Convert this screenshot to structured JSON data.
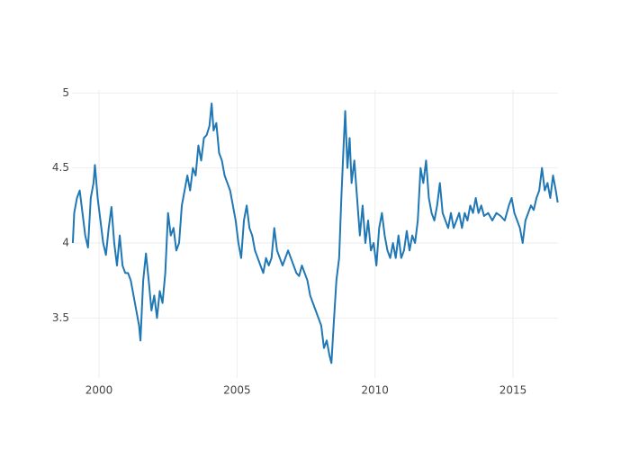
{
  "chart_data": {
    "type": "line",
    "color": "#1f77b4",
    "grid": true,
    "xlim": [
      1999.02,
      2016.63
    ],
    "xticks": [
      2000,
      2005,
      2010,
      2015
    ],
    "ylim": [
      3.1,
      5.02
    ],
    "yticks": [
      3.5,
      4,
      4.5,
      5
    ],
    "x": [
      1999.05,
      1999.1,
      1999.2,
      1999.3,
      1999.4,
      1999.5,
      1999.6,
      1999.7,
      1999.8,
      1999.85,
      1999.95,
      2000.05,
      2000.15,
      2000.25,
      2000.35,
      2000.45,
      2000.55,
      2000.65,
      2000.75,
      2000.85,
      2000.95,
      2001.05,
      2001.15,
      2001.25,
      2001.35,
      2001.45,
      2001.5,
      2001.6,
      2001.7,
      2001.8,
      2001.9,
      2002.0,
      2002.1,
      2002.2,
      2002.3,
      2002.4,
      2002.5,
      2002.6,
      2002.7,
      2002.8,
      2002.9,
      2003.0,
      2003.1,
      2003.2,
      2003.3,
      2003.4,
      2003.5,
      2003.6,
      2003.7,
      2003.8,
      2003.9,
      2004.0,
      2004.08,
      2004.15,
      2004.25,
      2004.35,
      2004.45,
      2004.55,
      2004.65,
      2004.75,
      2004.85,
      2004.95,
      2005.05,
      2005.15,
      2005.25,
      2005.35,
      2005.45,
      2005.55,
      2005.65,
      2005.75,
      2005.85,
      2005.95,
      2006.05,
      2006.15,
      2006.25,
      2006.35,
      2006.45,
      2006.55,
      2006.65,
      2006.75,
      2006.85,
      2006.95,
      2007.05,
      2007.15,
      2007.25,
      2007.35,
      2007.45,
      2007.55,
      2007.65,
      2007.75,
      2007.85,
      2007.95,
      2008.05,
      2008.15,
      2008.25,
      2008.35,
      2008.42,
      2008.5,
      2008.6,
      2008.7,
      2008.78,
      2008.85,
      2008.92,
      2009.0,
      2009.08,
      2009.15,
      2009.25,
      2009.35,
      2009.45,
      2009.55,
      2009.65,
      2009.75,
      2009.85,
      2009.95,
      2010.05,
      2010.15,
      2010.25,
      2010.35,
      2010.45,
      2010.55,
      2010.65,
      2010.75,
      2010.85,
      2010.95,
      2011.05,
      2011.15,
      2011.25,
      2011.35,
      2011.45,
      2011.55,
      2011.65,
      2011.75,
      2011.85,
      2011.95,
      2012.05,
      2012.15,
      2012.25,
      2012.35,
      2012.45,
      2012.55,
      2012.65,
      2012.75,
      2012.85,
      2012.95,
      2013.05,
      2013.15,
      2013.25,
      2013.35,
      2013.45,
      2013.55,
      2013.65,
      2013.75,
      2013.85,
      2013.95,
      2014.1,
      2014.25,
      2014.4,
      2014.55,
      2014.7,
      2014.85,
      2014.95,
      2015.05,
      2015.15,
      2015.25,
      2015.35,
      2015.45,
      2015.55,
      2015.65,
      2015.75,
      2015.85,
      2015.95,
      2016.05,
      2016.15,
      2016.25,
      2016.35,
      2016.45,
      2016.55,
      2016.62
    ],
    "values": [
      4.0,
      4.2,
      4.3,
      4.35,
      4.2,
      4.05,
      3.97,
      4.3,
      4.4,
      4.52,
      4.3,
      4.15,
      4.0,
      3.92,
      4.1,
      4.24,
      4.0,
      3.85,
      4.05,
      3.85,
      3.8,
      3.8,
      3.75,
      3.65,
      3.55,
      3.45,
      3.35,
      3.75,
      3.93,
      3.75,
      3.55,
      3.65,
      3.5,
      3.68,
      3.6,
      3.8,
      4.2,
      4.05,
      4.1,
      3.95,
      4.0,
      4.25,
      4.35,
      4.45,
      4.35,
      4.5,
      4.45,
      4.65,
      4.55,
      4.7,
      4.72,
      4.78,
      4.93,
      4.75,
      4.8,
      4.6,
      4.55,
      4.45,
      4.4,
      4.35,
      4.25,
      4.15,
      4.0,
      3.9,
      4.15,
      4.25,
      4.1,
      4.05,
      3.95,
      3.9,
      3.85,
      3.8,
      3.9,
      3.85,
      3.9,
      4.1,
      3.95,
      3.9,
      3.85,
      3.9,
      3.95,
      3.9,
      3.85,
      3.8,
      3.78,
      3.85,
      3.8,
      3.75,
      3.65,
      3.6,
      3.55,
      3.5,
      3.45,
      3.3,
      3.35,
      3.25,
      3.2,
      3.45,
      3.75,
      3.9,
      4.3,
      4.6,
      4.88,
      4.5,
      4.7,
      4.4,
      4.55,
      4.3,
      4.05,
      4.25,
      4.0,
      4.15,
      3.95,
      4.0,
      3.85,
      4.1,
      4.2,
      4.05,
      3.95,
      3.9,
      4.0,
      3.9,
      4.05,
      3.9,
      3.95,
      4.08,
      3.95,
      4.05,
      4.0,
      4.15,
      4.5,
      4.4,
      4.55,
      4.3,
      4.2,
      4.15,
      4.25,
      4.4,
      4.2,
      4.15,
      4.1,
      4.2,
      4.1,
      4.15,
      4.2,
      4.1,
      4.2,
      4.15,
      4.25,
      4.2,
      4.3,
      4.2,
      4.25,
      4.18,
      4.2,
      4.15,
      4.2,
      4.18,
      4.15,
      4.25,
      4.3,
      4.2,
      4.15,
      4.1,
      4.0,
      4.15,
      4.2,
      4.25,
      4.22,
      4.3,
      4.35,
      4.5,
      4.35,
      4.4,
      4.3,
      4.45,
      4.35,
      4.27
    ]
  }
}
